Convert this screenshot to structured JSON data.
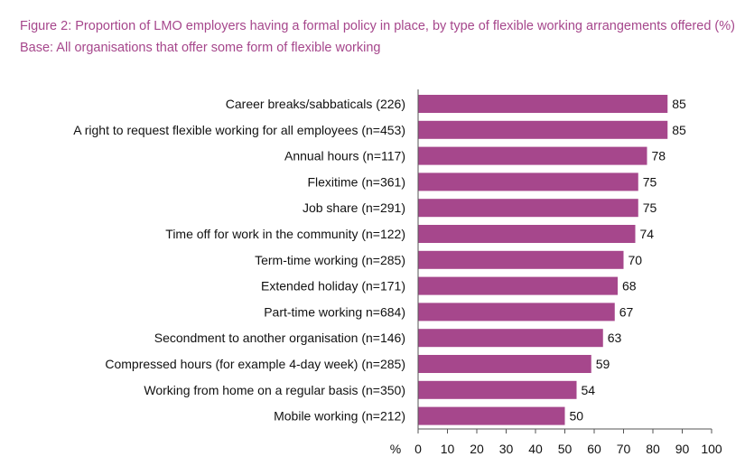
{
  "title": "Figure 2: Proportion of LMO employers having a formal policy in place, by type of flexible working arrangements offered (%)",
  "subtitle": "Base: All organisations that offer some form of flexible working",
  "colors": {
    "bar": "#a6478c",
    "title": "#a6478c",
    "text": "#111111"
  },
  "chart_data": {
    "type": "bar",
    "orientation": "horizontal",
    "title": "Figure 2: Proportion of LMO employers having a formal policy in place, by type of flexible working arrangements offered (%)",
    "subtitle": "Base: All organisations that offer some form of flexible working",
    "xlabel": "%",
    "ylabel": "",
    "xlim": [
      0,
      100
    ],
    "xticks": [
      0,
      10,
      20,
      30,
      40,
      50,
      60,
      70,
      80,
      90,
      100
    ],
    "grid": false,
    "legend": "none",
    "categories": [
      "Career breaks/sabbaticals (226)",
      "A right to request flexible working for all employees (n=453)",
      "Annual hours (n=117)",
      "Flexitime (n=361)",
      "Job share (n=291)",
      "Time off for work in the community (n=122)",
      "Term-time working (n=285)",
      "Extended holiday (n=171)",
      "Part-time working n=684)",
      "Secondment to another organisation (n=146)",
      "Compressed hours (for example 4-day week) (n=285)",
      "Working from home on a regular basis (n=350)",
      "Mobile working (n=212)"
    ],
    "values": [
      85,
      85,
      78,
      75,
      75,
      74,
      70,
      68,
      67,
      63,
      59,
      54,
      50
    ]
  }
}
